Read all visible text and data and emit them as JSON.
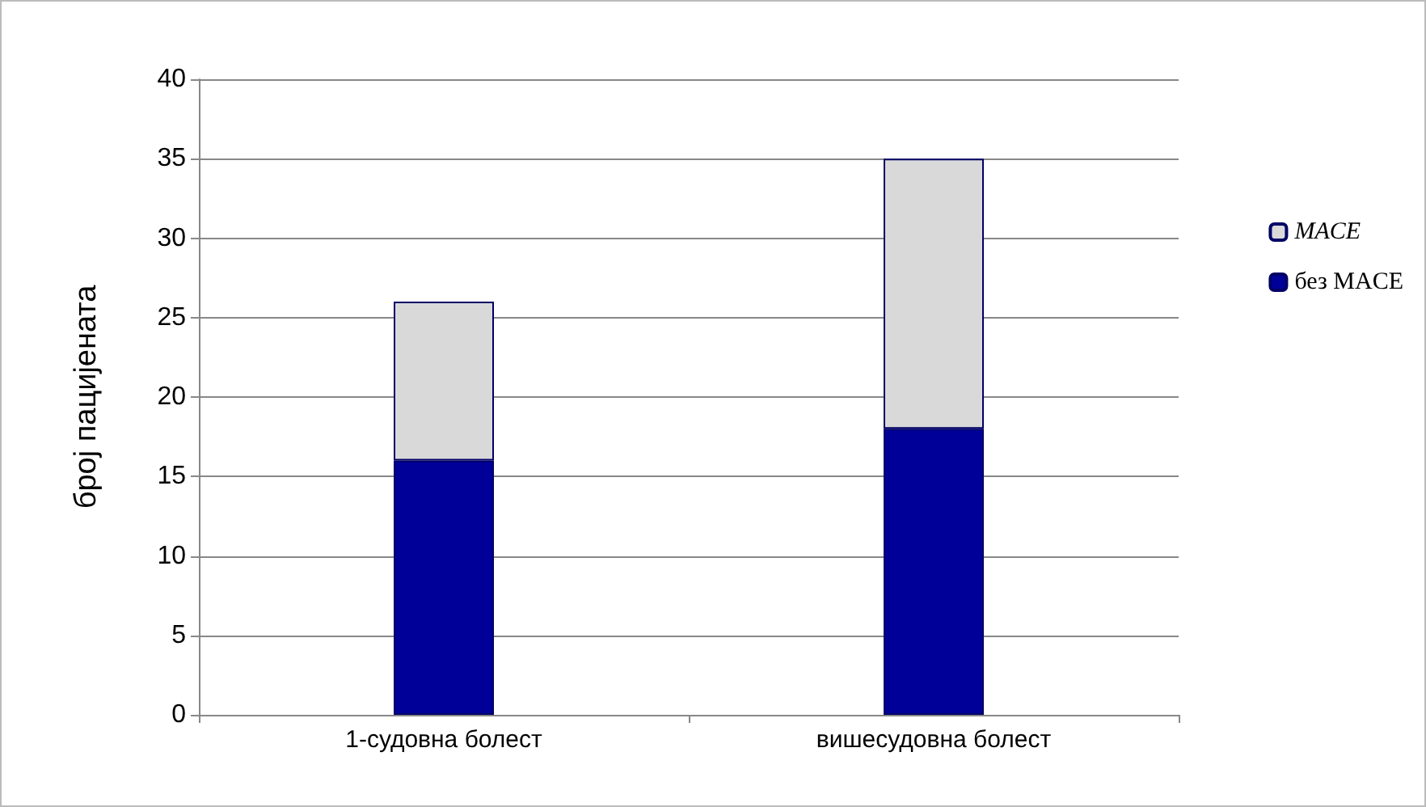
{
  "chart_data": {
    "type": "bar",
    "ylabel": "број пацијената",
    "categories": [
      "1-судовна болест",
      "вишесудовна болест"
    ],
    "stacked": true,
    "series": [
      {
        "name": "без MACE",
        "color": "#000099",
        "values": [
          16,
          18
        ]
      },
      {
        "name": "MACE",
        "color": "#d9d9d9",
        "values": [
          10,
          17
        ]
      }
    ],
    "ylim": [
      0,
      40
    ],
    "yticks": [
      0,
      5,
      10,
      15,
      20,
      25,
      30,
      35,
      40
    ],
    "grid": "y",
    "legend": "right"
  }
}
